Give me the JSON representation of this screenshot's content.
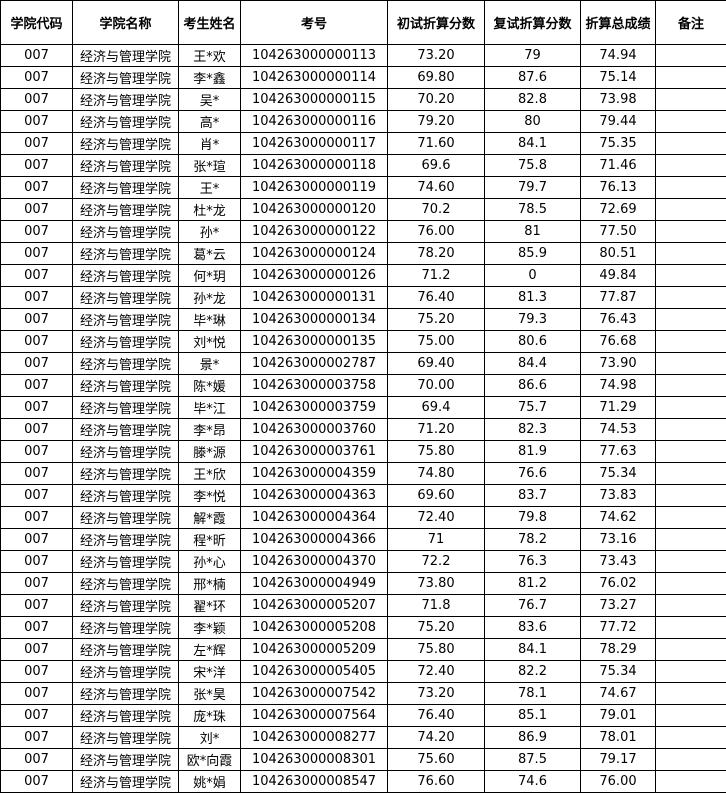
{
  "headers": [
    "学院代码",
    "学院名称",
    "考生姓名",
    "考号",
    "初试折算分数",
    "复试折算分数",
    "折算总成绩",
    "备注"
  ],
  "rows": [
    [
      "007",
      "经济与管理学院",
      "王*欢",
      "104263000000113",
      "73.20",
      "79",
      "74.94",
      ""
    ],
    [
      "007",
      "经济与管理学院",
      "李*鑫",
      "104263000000114",
      "69.80",
      "87.6",
      "75.14",
      ""
    ],
    [
      "007",
      "经济与管理学院",
      "吴*",
      "104263000000115",
      "70.20",
      "82.8",
      "73.98",
      ""
    ],
    [
      "007",
      "经济与管理学院",
      "高*",
      "104263000000116",
      "79.20",
      "80",
      "79.44",
      ""
    ],
    [
      "007",
      "经济与管理学院",
      "肖*",
      "104263000000117",
      "71.60",
      "84.1",
      "75.35",
      ""
    ],
    [
      "007",
      "经济与管理学院",
      "张*瑄",
      "104263000000118",
      "69.6",
      "75.8",
      "71.46",
      ""
    ],
    [
      "007",
      "经济与管理学院",
      "王*",
      "104263000000119",
      "74.60",
      "79.7",
      "76.13",
      ""
    ],
    [
      "007",
      "经济与管理学院",
      "杜*龙",
      "104263000000120",
      "70.2",
      "78.5",
      "72.69",
      ""
    ],
    [
      "007",
      "经济与管理学院",
      "孙*",
      "104263000000122",
      "76.00",
      "81",
      "77.50",
      ""
    ],
    [
      "007",
      "经济与管理学院",
      "葛*云",
      "104263000000124",
      "78.20",
      "85.9",
      "80.51",
      ""
    ],
    [
      "007",
      "经济与管理学院",
      "何*玥",
      "104263000000126",
      "71.2",
      "0",
      "49.84",
      ""
    ],
    [
      "007",
      "经济与管理学院",
      "孙*龙",
      "104263000000131",
      "76.40",
      "81.3",
      "77.87",
      ""
    ],
    [
      "007",
      "经济与管理学院",
      "毕*琳",
      "104263000000134",
      "75.20",
      "79.3",
      "76.43",
      ""
    ],
    [
      "007",
      "经济与管理学院",
      "刘*悦",
      "104263000000135",
      "75.00",
      "80.6",
      "76.68",
      ""
    ],
    [
      "007",
      "经济与管理学院",
      "景*",
      "104263000002787",
      "69.40",
      "84.4",
      "73.90",
      ""
    ],
    [
      "007",
      "经济与管理学院",
      "陈*媛",
      "104263000003758",
      "70.00",
      "86.6",
      "74.98",
      ""
    ],
    [
      "007",
      "经济与管理学院",
      "毕*江",
      "104263000003759",
      "69.4",
      "75.7",
      "71.29",
      ""
    ],
    [
      "007",
      "经济与管理学院",
      "李*昂",
      "104263000003760",
      "71.20",
      "82.3",
      "74.53",
      ""
    ],
    [
      "007",
      "经济与管理学院",
      "滕*源",
      "104263000003761",
      "75.80",
      "81.9",
      "77.63",
      ""
    ],
    [
      "007",
      "经济与管理学院",
      "王*欣",
      "104263000004359",
      "74.80",
      "76.6",
      "75.34",
      ""
    ],
    [
      "007",
      "经济与管理学院",
      "李*悦",
      "104263000004363",
      "69.60",
      "83.7",
      "73.83",
      ""
    ],
    [
      "007",
      "经济与管理学院",
      "解*霞",
      "104263000004364",
      "72.40",
      "79.8",
      "74.62",
      ""
    ],
    [
      "007",
      "经济与管理学院",
      "程*昕",
      "104263000004366",
      "71",
      "78.2",
      "73.16",
      ""
    ],
    [
      "007",
      "经济与管理学院",
      "孙*心",
      "104263000004370",
      "72.2",
      "76.3",
      "73.43",
      ""
    ],
    [
      "007",
      "经济与管理学院",
      "邢*楠",
      "104263000004949",
      "73.80",
      "81.2",
      "76.02",
      ""
    ],
    [
      "007",
      "经济与管理学院",
      "翟*环",
      "104263000005207",
      "71.8",
      "76.7",
      "73.27",
      ""
    ],
    [
      "007",
      "经济与管理学院",
      "李*颖",
      "104263000005208",
      "75.20",
      "83.6",
      "77.72",
      ""
    ],
    [
      "007",
      "经济与管理学院",
      "左*辉",
      "104263000005209",
      "75.80",
      "84.1",
      "78.29",
      ""
    ],
    [
      "007",
      "经济与管理学院",
      "宋*洋",
      "104263000005405",
      "72.40",
      "82.2",
      "75.34",
      ""
    ],
    [
      "007",
      "经济与管理学院",
      "张*昊",
      "104263000007542",
      "73.20",
      "78.1",
      "74.67",
      ""
    ],
    [
      "007",
      "经济与管理学院",
      "庞*珠",
      "104263000007564",
      "76.40",
      "85.1",
      "79.01",
      ""
    ],
    [
      "007",
      "经济与管理学院",
      "刘*",
      "104263000008277",
      "74.20",
      "86.9",
      "78.01",
      ""
    ],
    [
      "007",
      "经济与管理学院",
      "欧*向霞",
      "104263000008301",
      "75.60",
      "87.5",
      "79.17",
      ""
    ],
    [
      "007",
      "经济与管理学院",
      "姚*娟",
      "104263000008547",
      "76.60",
      "74.6",
      "76.00",
      ""
    ]
  ]
}
